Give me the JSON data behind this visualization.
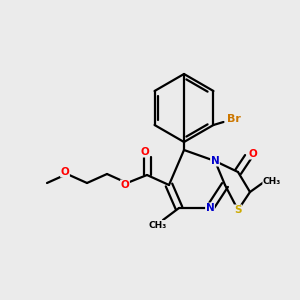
{
  "background_color": "#ebebeb",
  "figsize": [
    3.0,
    3.0
  ],
  "dpi": 100,
  "colors": {
    "C": "#000000",
    "O": "#ff0000",
    "N": "#0000cc",
    "S": "#ccaa00",
    "Br": "#cc7700",
    "bond": "#000000"
  },
  "bond_lw": 1.6,
  "font_size": 7.5
}
